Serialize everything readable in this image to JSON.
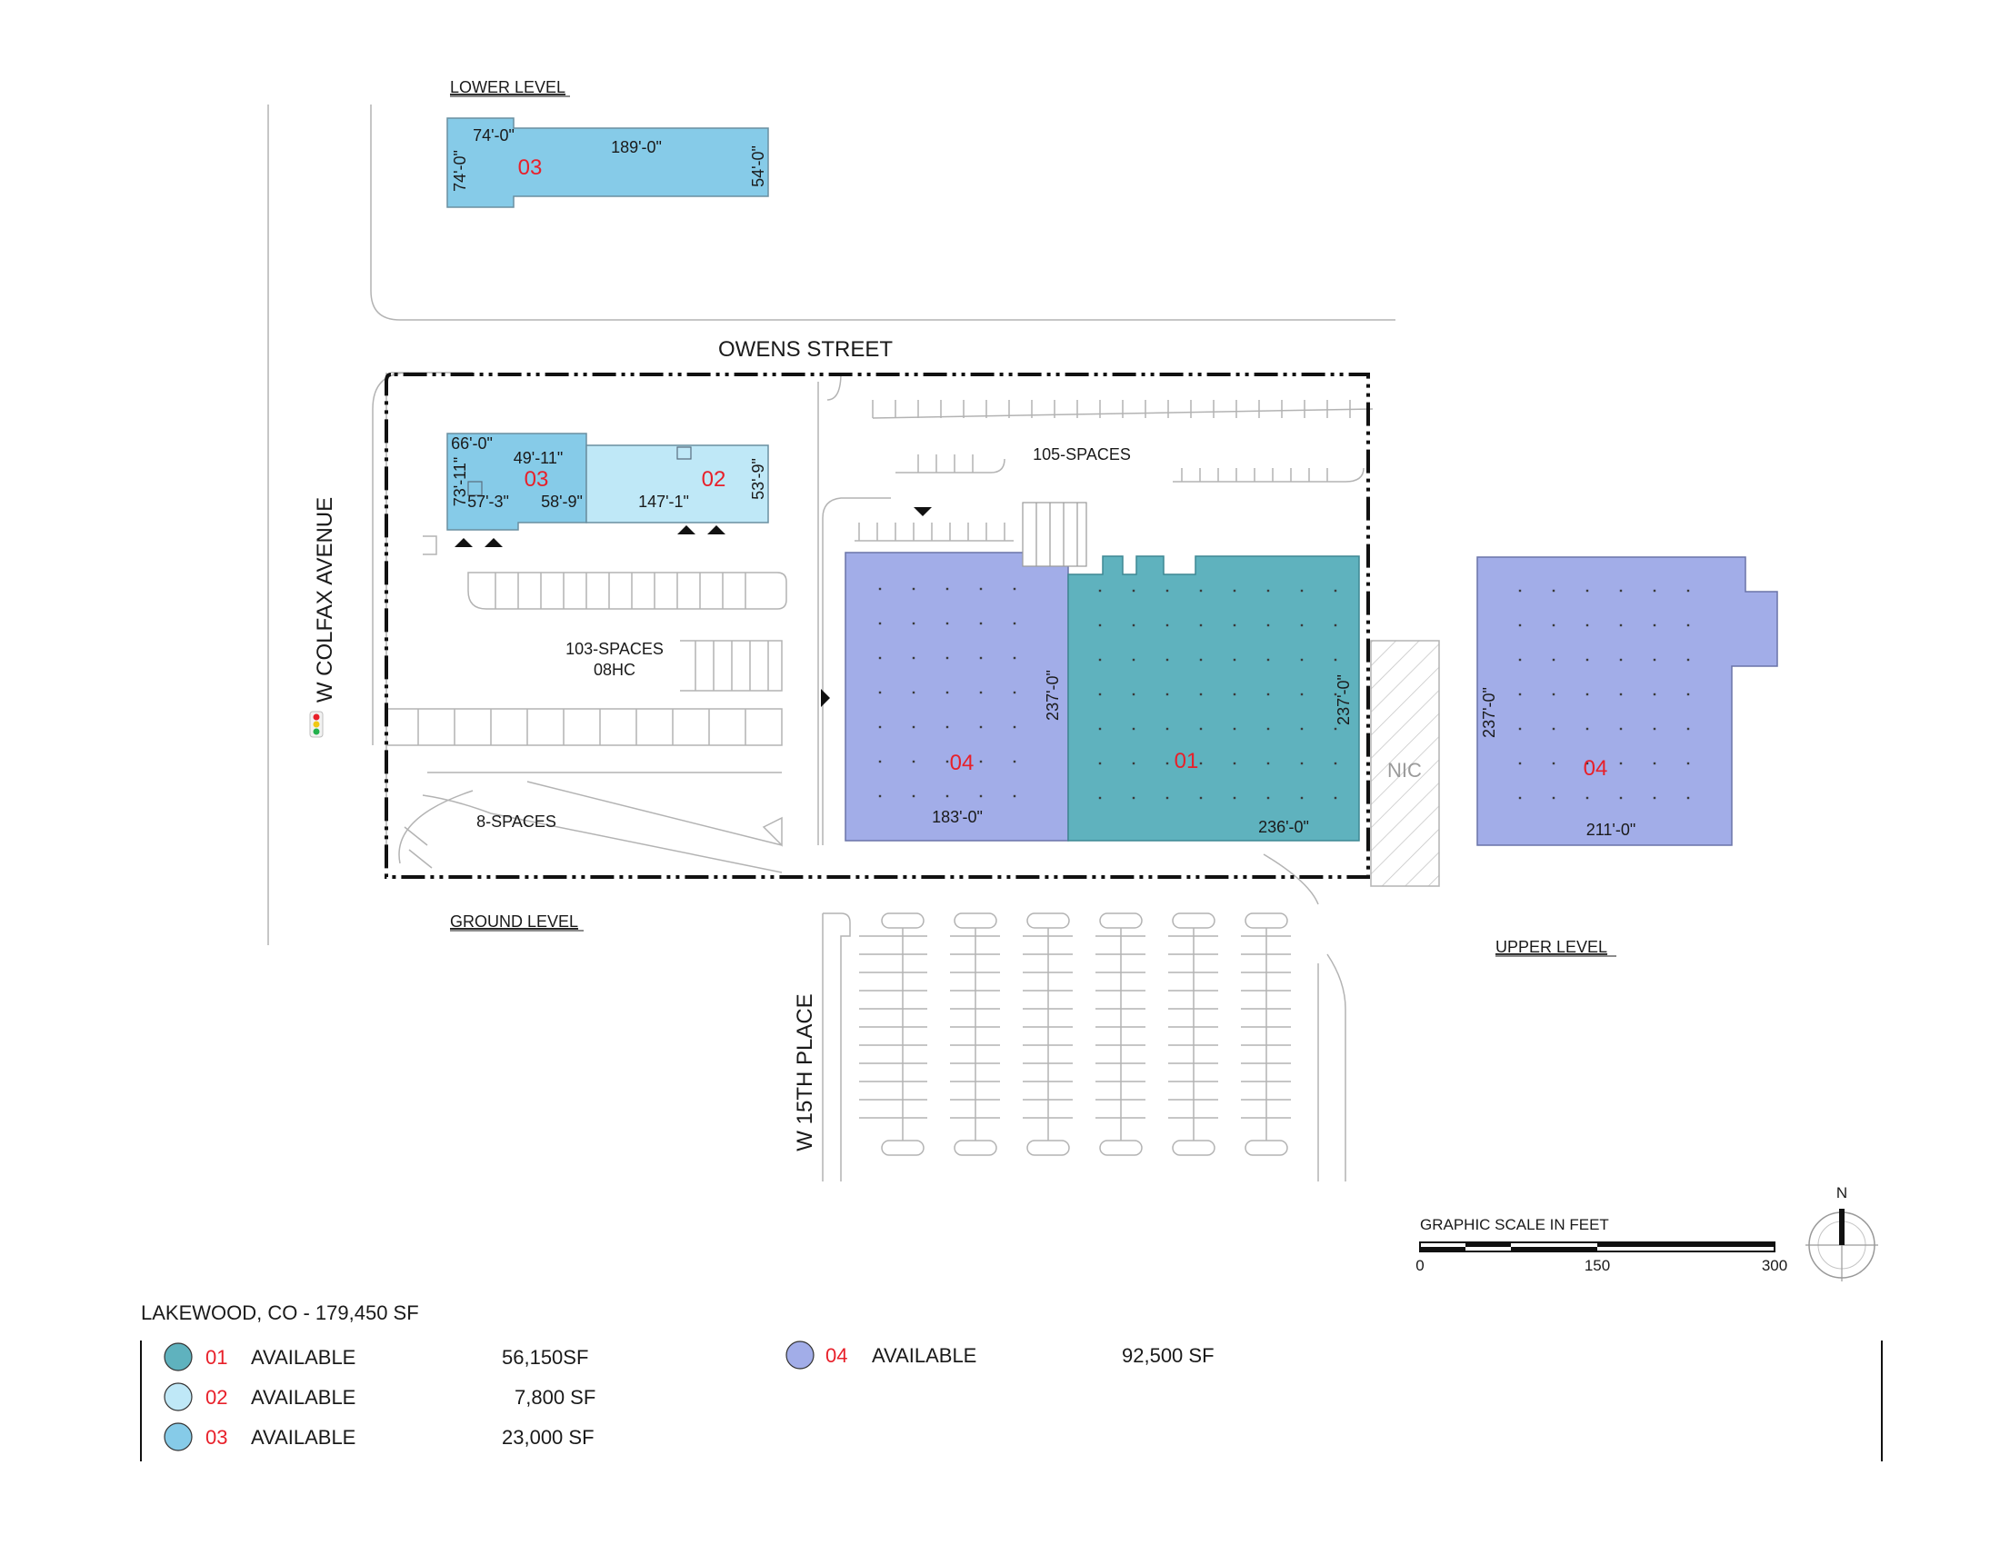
{
  "colors": {
    "unit01": "#5fb2be",
    "unit02": "#bfe8f7",
    "unit03": "#86cbe8",
    "unit04": "#a2ade8",
    "accent_red": "#e8202a"
  },
  "levels": {
    "lower": "LOWER LEVEL",
    "ground": "GROUND LEVEL",
    "upper": "UPPER LEVEL"
  },
  "streets": {
    "owens": "OWENS STREET",
    "colfax": "W COLFAX AVENUE",
    "w15th": "W 15TH PLACE"
  },
  "parking": {
    "north": "105-SPACES",
    "west_line1": "103-SPACES",
    "west_line2": "08HC",
    "south": "8-SPACES"
  },
  "nic": "NIC",
  "units": {
    "lower_03": "03",
    "ground_03": "03",
    "ground_02": "02",
    "ground_04": "04",
    "ground_01": "01",
    "upper_04": "04"
  },
  "dims": {
    "lower_74w": "74'-0\"",
    "lower_189": "189'-0\"",
    "lower_74h": "74'-0\"",
    "lower_54": "54'-0\"",
    "g_66": "66'-0\"",
    "g_49": "49'-11\"",
    "g_73": "73'-11\"",
    "g_57": "57'-3\"",
    "g_58": "58'-9\"",
    "g_147": "147'-1\"",
    "g_53": "53'-9\"",
    "g_237a": "237'-0\"",
    "g_183": "183'-0\"",
    "g_237b": "237'-0\"",
    "g_236": "236'-0\"",
    "u_237": "237'-0\"",
    "u_211": "211'-0\""
  },
  "scale": {
    "title": "GRAPHIC SCALE IN FEET",
    "t0": "0",
    "t150": "150",
    "t300": "300"
  },
  "north_label": "N",
  "legend": {
    "title": "LAKEWOOD, CO - 179,450 SF",
    "items": [
      {
        "id": "01",
        "status": "AVAILABLE",
        "area": "56,150SF"
      },
      {
        "id": "02",
        "status": "AVAILABLE",
        "area": "7,800 SF"
      },
      {
        "id": "03",
        "status": "AVAILABLE",
        "area": "23,000 SF"
      },
      {
        "id": "04",
        "status": "AVAILABLE",
        "area": "92,500 SF"
      }
    ]
  }
}
